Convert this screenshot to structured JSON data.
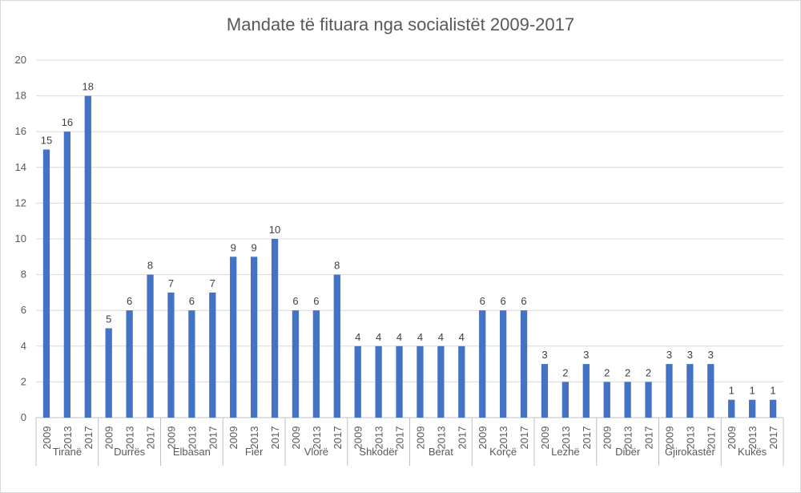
{
  "chart_data": {
    "type": "bar",
    "title": "Mandate të fituara nga socialistët 2009-2017",
    "ylim": [
      0,
      20
    ],
    "yticks": [
      0,
      2,
      4,
      6,
      8,
      10,
      12,
      14,
      16,
      18,
      20
    ],
    "grid": true,
    "bar_color": "#4472c4",
    "data_labels": true,
    "groups": [
      {
        "category": "Tiranë",
        "x": [
          "2009",
          "2013",
          "2017"
        ],
        "values": [
          15,
          16,
          18
        ]
      },
      {
        "category": "Durrës",
        "x": [
          "2009",
          "2013",
          "2017"
        ],
        "values": [
          5,
          6,
          8
        ]
      },
      {
        "category": "Elbasan",
        "x": [
          "2009",
          "2013",
          "2017"
        ],
        "values": [
          7,
          6,
          7
        ]
      },
      {
        "category": "Fier",
        "x": [
          "2009",
          "2013",
          "2017"
        ],
        "values": [
          9,
          9,
          10
        ]
      },
      {
        "category": "Vlorë",
        "x": [
          "2009",
          "2013",
          "2017"
        ],
        "values": [
          6,
          6,
          8
        ]
      },
      {
        "category": "Shkodër",
        "x": [
          "2009",
          "2013",
          "2017"
        ],
        "values": [
          4,
          4,
          4
        ]
      },
      {
        "category": "Berat",
        "x": [
          "2009",
          "2013",
          "2017"
        ],
        "values": [
          4,
          4,
          4
        ]
      },
      {
        "category": "Korçë",
        "x": [
          "2009",
          "2013",
          "2017"
        ],
        "values": [
          6,
          6,
          6
        ]
      },
      {
        "category": "Lezhë",
        "x": [
          "2009",
          "2013",
          "2017"
        ],
        "values": [
          3,
          2,
          3
        ]
      },
      {
        "category": "Dibër",
        "x": [
          "2009",
          "2013",
          "2017"
        ],
        "values": [
          2,
          2,
          2
        ]
      },
      {
        "category": "Gjirokastër",
        "x": [
          "2009",
          "2013",
          "2017"
        ],
        "values": [
          3,
          3,
          3
        ]
      },
      {
        "category": "Kukës",
        "x": [
          "2009",
          "2013",
          "2017"
        ],
        "values": [
          1,
          1,
          1
        ]
      }
    ]
  }
}
